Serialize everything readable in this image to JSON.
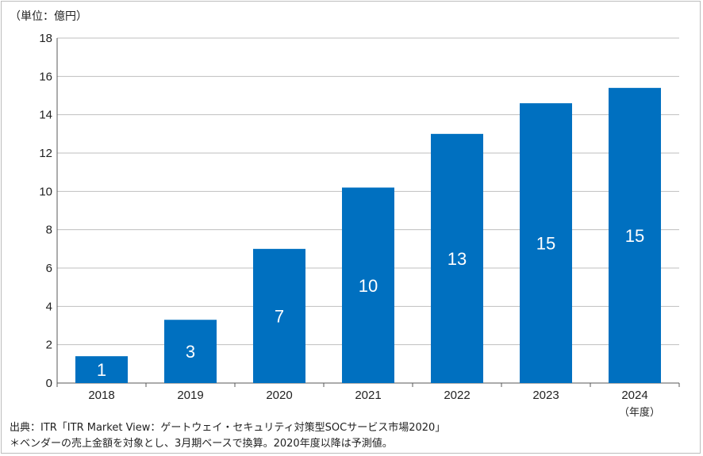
{
  "unit_label": "（単位：億円）",
  "x_unit_label": "（年度）",
  "footnotes": {
    "source": "出典：ITR「ITR Market View：ゲートウェイ・セキュリティ対策型SOCサービス市場2020」",
    "note": "＊ベンダーの売上金額を対象とし、3月期ベースで換算。2020年度以降は予測値。"
  },
  "colors": {
    "bar": "#0070c0",
    "grid": "#bfbfbf",
    "axis": "#595959"
  },
  "chart_data": {
    "type": "bar",
    "categories": [
      "2018",
      "2019",
      "2020",
      "2021",
      "2022",
      "2023",
      "2024"
    ],
    "values": [
      1.4,
      3.3,
      7.0,
      10.2,
      13.0,
      14.6,
      15.4
    ],
    "data_labels": [
      "1",
      "3",
      "7",
      "10",
      "13",
      "15",
      "15"
    ],
    "yticks": [
      "0",
      "2",
      "4",
      "6",
      "8",
      "10",
      "12",
      "14",
      "16",
      "18"
    ],
    "ylim": [
      0,
      18
    ],
    "grid": true,
    "legend": "none"
  }
}
